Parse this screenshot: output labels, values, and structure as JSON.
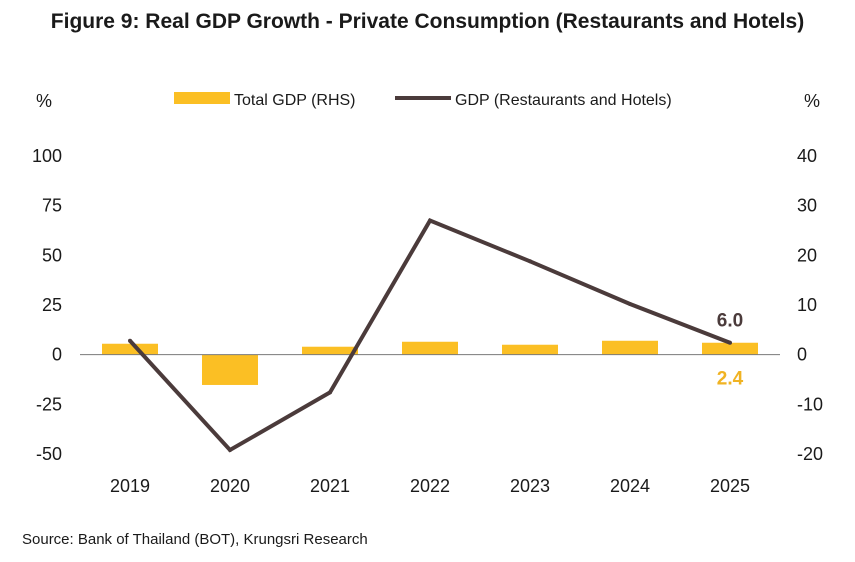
{
  "chart_data": {
    "type": "bar",
    "title": "Figure 9: Real GDP Growth - Private Consumption (Restaurants and Hotels)",
    "source": "Source: Bank of Thailand (BOT), Krungsri Research",
    "categories": [
      "2019",
      "2020",
      "2021",
      "2022",
      "2023",
      "2024",
      "2025"
    ],
    "left_axis": {
      "unit": "%",
      "ylim": [
        -50,
        100
      ],
      "ticks": [
        100,
        75,
        50,
        25,
        0,
        -25,
        -50
      ]
    },
    "right_axis": {
      "unit": "%",
      "ylim": [
        -20,
        40
      ],
      "ticks": [
        40,
        30,
        20,
        10,
        0,
        -10,
        -20
      ]
    },
    "series": [
      {
        "name": "Total GDP (RHS)",
        "kind": "bar",
        "axis": "right",
        "color": "#FBBF24",
        "values": [
          2.2,
          -6.1,
          1.6,
          2.6,
          2.0,
          2.8,
          2.4
        ]
      },
      {
        "name": "GDP (Restaurants and Hotels)",
        "kind": "line",
        "axis": "left",
        "color": "#4B3B3B",
        "values": [
          7.0,
          -48.0,
          -19.0,
          67.5,
          47.0,
          25.5,
          6.0
        ]
      }
    ],
    "annotations": [
      {
        "text": "6.0",
        "series": "GDP (Restaurants and Hotels)",
        "category": "2025",
        "color": "#4B3B3B"
      },
      {
        "text": "2.4",
        "series": "Total GDP (RHS)",
        "category": "2025",
        "color": "#F0B323"
      }
    ],
    "legend": "top-center",
    "grid": false
  }
}
